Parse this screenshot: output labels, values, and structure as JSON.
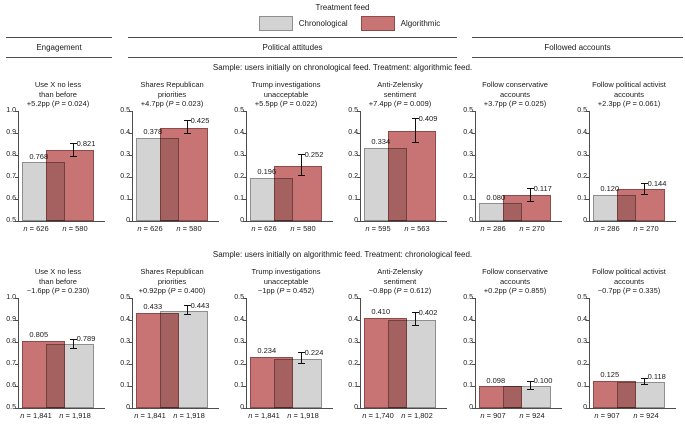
{
  "chart_data": {
    "type": "bar",
    "legend_title": "Treatment feed",
    "groups": [
      {
        "id": "chronological",
        "label": "Chronological",
        "fill": "#d3d3d3",
        "border": "#8f8f8f"
      },
      {
        "id": "algorithmic",
        "label": "Algorithmic",
        "fill": "#c87474",
        "border": "#8f4a4a"
      }
    ],
    "symbols": {
      "n": "n",
      "p": "P"
    },
    "axis_color": "#4d4d4d",
    "error_color": "#111111",
    "sections": [
      {
        "label": "Engagement"
      },
      {
        "label": "Political attitudes"
      },
      {
        "label": "Followed accounts"
      }
    ],
    "rows": [
      {
        "subtitle": "Sample: users initially on chronological feed. Treatment: algorithmic feed.",
        "charts": [
          {
            "title_lines": [
              "Use X no less",
              "than before"
            ],
            "delta": "+5.2pp",
            "p_value": "0.024",
            "ymin": 0.5,
            "ymax": 1.0,
            "yticks": [
              "1.0",
              "0.9",
              "0.8",
              "0.7",
              "0.6",
              "0.5"
            ],
            "bars": [
              {
                "group": "chronological",
                "value": 0.768,
                "label": "0.768",
                "n": "626"
              },
              {
                "group": "algorithmic",
                "value": 0.821,
                "label": "0.821",
                "n": "580",
                "err_lo": 0.791,
                "err_hi": 0.851
              }
            ]
          },
          {
            "title_lines": [
              "Shares Republican",
              "priorities"
            ],
            "delta": "+4.7pp",
            "p_value": "0.023",
            "ymin": 0,
            "ymax": 0.5,
            "yticks": [
              "0.5",
              "0.4",
              "0.3",
              "0.2",
              "0.1",
              "0"
            ],
            "bars": [
              {
                "group": "chronological",
                "value": 0.378,
                "label": "0.378",
                "n": "626"
              },
              {
                "group": "algorithmic",
                "value": 0.425,
                "label": "0.425",
                "n": "580",
                "err_lo": 0.395,
                "err_hi": 0.455
              }
            ]
          },
          {
            "title_lines": [
              "Trump investigations",
              "unacceptable"
            ],
            "delta": "+5.5pp",
            "p_value": "0.022",
            "ymin": 0,
            "ymax": 0.5,
            "yticks": [
              "0.5",
              "0.4",
              "0.3",
              "0.2",
              "0.1",
              "0"
            ],
            "bars": [
              {
                "group": "chronological",
                "value": 0.196,
                "label": "0.196",
                "n": "626"
              },
              {
                "group": "algorithmic",
                "value": 0.252,
                "label": "0.252",
                "n": "580",
                "err_lo": 0.205,
                "err_hi": 0.299
              }
            ]
          },
          {
            "title_lines": [
              "Anti-Zelensky",
              "sentiment"
            ],
            "delta": "+7.4pp",
            "p_value": "0.009",
            "ymin": 0,
            "ymax": 0.5,
            "yticks": [
              "0.5",
              "0.4",
              "0.3",
              "0.2",
              "0.1",
              "0"
            ],
            "bars": [
              {
                "group": "chronological",
                "value": 0.334,
                "label": "0.334",
                "n": "595"
              },
              {
                "group": "algorithmic",
                "value": 0.409,
                "label": "0.409",
                "n": "563",
                "err_lo": 0.353,
                "err_hi": 0.465
              }
            ]
          },
          {
            "title_lines": [
              "Follow conservative",
              "accounts"
            ],
            "delta": "+3.7pp",
            "p_value": "0.025",
            "ymin": 0,
            "ymax": 0.5,
            "yticks": [
              "0.5",
              "0.4",
              "0.3",
              "0.2",
              "0.1",
              "0"
            ],
            "bars": [
              {
                "group": "chronological",
                "value": 0.08,
                "label": "0.080",
                "n": "286"
              },
              {
                "group": "algorithmic",
                "value": 0.117,
                "label": "0.117",
                "n": "270",
                "err_lo": 0.087,
                "err_hi": 0.147
              }
            ]
          },
          {
            "title_lines": [
              "Follow political activist",
              "accounts"
            ],
            "delta": "+2.3pp",
            "p_value": "0.061",
            "ymin": 0,
            "ymax": 0.5,
            "yticks": [
              "0.5",
              "0.4",
              "0.3",
              "0.2",
              "0.1",
              "0"
            ],
            "bars": [
              {
                "group": "chronological",
                "value": 0.12,
                "label": "0.120",
                "n": "286"
              },
              {
                "group": "algorithmic",
                "value": 0.144,
                "label": "0.144",
                "n": "270",
                "err_lo": 0.12,
                "err_hi": 0.168
              }
            ]
          }
        ]
      },
      {
        "subtitle": "Sample: users initially on algorithmic feed. Treatment: chronological feed.",
        "charts": [
          {
            "title_lines": [
              "Use X no less",
              "than before"
            ],
            "delta": "−1.6pp",
            "p_value": "0.230",
            "ymin": 0.5,
            "ymax": 1.0,
            "yticks": [
              "1.0",
              "0.9",
              "0.8",
              "0.7",
              "0.6",
              "0.5"
            ],
            "bars": [
              {
                "group": "algorithmic",
                "value": 0.805,
                "label": "0.805",
                "n": "1,841"
              },
              {
                "group": "chronological",
                "value": 0.789,
                "label": "0.789",
                "n": "1,918",
                "err_lo": 0.768,
                "err_hi": 0.81
              }
            ]
          },
          {
            "title_lines": [
              "Shares Republican",
              "priorities"
            ],
            "delta": "+0.92pp",
            "p_value": "0.400",
            "ymin": 0,
            "ymax": 0.5,
            "yticks": [
              "0.5",
              "0.4",
              "0.3",
              "0.2",
              "0.1",
              "0"
            ],
            "bars": [
              {
                "group": "algorithmic",
                "value": 0.433,
                "label": "0.433",
                "n": "1,841"
              },
              {
                "group": "chronological",
                "value": 0.443,
                "label": "0.443",
                "n": "1,918",
                "err_lo": 0.421,
                "err_hi": 0.465
              }
            ]
          },
          {
            "title_lines": [
              "Trump investigations",
              "unacceptable"
            ],
            "delta": "−1pp",
            "p_value": "0.452",
            "ymin": 0,
            "ymax": 0.5,
            "yticks": [
              "0.5",
              "0.4",
              "0.3",
              "0.2",
              "0.1",
              "0"
            ],
            "bars": [
              {
                "group": "algorithmic",
                "value": 0.234,
                "label": "0.234",
                "n": "1,841"
              },
              {
                "group": "chronological",
                "value": 0.224,
                "label": "0.224",
                "n": "1,918",
                "err_lo": 0.2,
                "err_hi": 0.248
              }
            ]
          },
          {
            "title_lines": [
              "Anti-Zelensky",
              "sentiment"
            ],
            "delta": "−0.8pp",
            "p_value": "0.612",
            "ymin": 0,
            "ymax": 0.5,
            "yticks": [
              "0.5",
              "0.4",
              "0.3",
              "0.2",
              "0.1",
              "0"
            ],
            "bars": [
              {
                "group": "algorithmic",
                "value": 0.41,
                "label": "0.410",
                "n": "1,740"
              },
              {
                "group": "chronological",
                "value": 0.402,
                "label": "0.402",
                "n": "1,802",
                "err_lo": 0.372,
                "err_hi": 0.432
              }
            ]
          },
          {
            "title_lines": [
              "Follow conservative",
              "accounts"
            ],
            "delta": "+0.2pp",
            "p_value": "0.855",
            "ymin": 0,
            "ymax": 0.5,
            "yticks": [
              "0.5",
              "0.4",
              "0.3",
              "0.2",
              "0.1",
              "0"
            ],
            "bars": [
              {
                "group": "algorithmic",
                "value": 0.098,
                "label": "0.098",
                "n": "907"
              },
              {
                "group": "chronological",
                "value": 0.1,
                "label": "0.100",
                "n": "924",
                "err_lo": 0.083,
                "err_hi": 0.117
              }
            ]
          },
          {
            "title_lines": [
              "Follow political activist",
              "accounts"
            ],
            "delta": "−0.7pp",
            "p_value": "0.335",
            "ymin": 0,
            "ymax": 0.5,
            "yticks": [
              "0.5",
              "0.4",
              "0.3",
              "0.2",
              "0.1",
              "0"
            ],
            "bars": [
              {
                "group": "algorithmic",
                "value": 0.125,
                "label": "0.125",
                "n": "907"
              },
              {
                "group": "chronological",
                "value": 0.118,
                "label": "0.118",
                "n": "924",
                "err_lo": 0.104,
                "err_hi": 0.132
              }
            ]
          }
        ]
      }
    ]
  }
}
